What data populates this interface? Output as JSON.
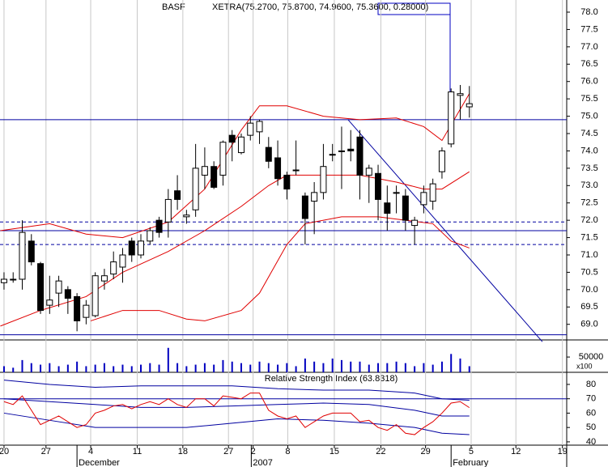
{
  "chart_data": {
    "type": "candlestick",
    "title": "BASF",
    "annotation": "XETRA(75.2700, 75.8700, 74.9600, 75.3600, 0.28000)",
    "xlim": [
      -0.44,
      61.67
    ],
    "xticks": [
      {
        "value": 0,
        "label": "20"
      },
      {
        "value": 4.6,
        "label": "27"
      },
      {
        "value": 9.5,
        "label": "4"
      },
      {
        "value": 14.6,
        "label": "11"
      },
      {
        "value": 19.6,
        "label": "18"
      },
      {
        "value": 24.6,
        "label": "27"
      },
      {
        "value": 27.3,
        "label": "2"
      },
      {
        "value": 31.1,
        "label": "8"
      },
      {
        "value": 36.2,
        "label": "15"
      },
      {
        "value": 41.3,
        "label": "22"
      },
      {
        "value": 46.2,
        "label": "29"
      },
      {
        "value": 51.2,
        "label": "5"
      },
      {
        "value": 56.1,
        "label": "12"
      },
      {
        "value": 61.2,
        "label": "19"
      }
    ],
    "month_labels": [
      {
        "value": 8,
        "label": "December"
      },
      {
        "value": 27.1,
        "label": "2007"
      },
      {
        "value": 49,
        "label": "February"
      }
    ],
    "ylim": [
      68.55,
      78.35
    ],
    "yticks": [
      {
        "value": 69,
        "label": "69.0"
      },
      69.5,
      {
        "value": 70,
        "label": "70.0"
      },
      70.5,
      {
        "value": 71,
        "label": "71.0"
      },
      71.5,
      {
        "value": 72,
        "label": "72.0"
      },
      72.5,
      {
        "value": 73,
        "label": "73.0"
      },
      73.5,
      {
        "value": 74,
        "label": "74.0"
      },
      74.5,
      {
        "value": 75,
        "label": "75.0"
      },
      75.5,
      {
        "value": 76,
        "label": "76.0"
      },
      76.5,
      {
        "value": 77,
        "label": "77.0"
      },
      77.5,
      {
        "value": 78,
        "label": "78.0"
      }
    ],
    "open": [
      70.2,
      70.3,
      70.3,
      71.4,
      70.75,
      69.55,
      69.9,
      70.0,
      69.8,
      69.2,
      69.25,
      70.25,
      70.45,
      70.65,
      71.4,
      71.0,
      71.4,
      72.0,
      71.95,
      72.85,
      72.1,
      72.3,
      73.3,
      73.55,
      73.3,
      74.45,
      73.95,
      74.45,
      74.55,
      74.1,
      73.8,
      73.3,
      73.45,
      72.7,
      72.55,
      72.8,
      73.9,
      74.0,
      74.05,
      74.4,
      73.3,
      73.35,
      72.5,
      72.8,
      72.7,
      71.85,
      72.45,
      72.55,
      73.4,
      74.2,
      75.6,
      75.27
    ],
    "high": [
      70.5,
      70.5,
      72.0,
      71.6,
      70.8,
      70.4,
      70.4,
      70.1,
      69.9,
      69.7,
      70.5,
      70.6,
      71.1,
      71.2,
      71.5,
      71.6,
      71.8,
      72.1,
      72.9,
      73.3,
      72.3,
      74.2,
      74.1,
      73.7,
      74.3,
      74.6,
      74.5,
      75.0,
      74.9,
      74.4,
      74.3,
      73.4,
      74.3,
      72.8,
      73.1,
      74.2,
      74.2,
      74.7,
      74.6,
      74.6,
      73.6,
      73.6,
      73.0,
      73.0,
      72.9,
      72.1,
      73.0,
      73.2,
      74.1,
      75.8,
      75.9,
      75.87
    ],
    "low": [
      70.0,
      70.2,
      70.0,
      70.7,
      69.3,
      69.3,
      69.5,
      69.3,
      68.8,
      69.0,
      69.2,
      70.0,
      70.3,
      70.2,
      70.8,
      70.9,
      71.3,
      71.5,
      71.5,
      72.3,
      71.9,
      72.1,
      72.9,
      72.9,
      73.0,
      73.7,
      73.9,
      74.3,
      74.2,
      73.5,
      73.0,
      72.6,
      73.3,
      71.3,
      71.6,
      72.6,
      73.7,
      72.9,
      73.7,
      72.6,
      72.5,
      72.0,
      71.7,
      72.2,
      71.7,
      71.3,
      72.2,
      72.3,
      73.2,
      74.1,
      74.9,
      74.96
    ],
    "close": [
      70.3,
      70.3,
      71.65,
      70.8,
      69.4,
      69.7,
      70.25,
      69.75,
      69.1,
      69.55,
      70.4,
      70.4,
      70.8,
      71.0,
      71.0,
      71.4,
      71.7,
      71.65,
      72.6,
      72.6,
      72.15,
      73.5,
      73.55,
      72.95,
      74.25,
      74.25,
      74.4,
      74.8,
      74.85,
      73.7,
      73.2,
      72.9,
      73.45,
      72.05,
      72.8,
      73.55,
      73.9,
      74.0,
      74.0,
      73.3,
      73.5,
      72.6,
      72.2,
      72.8,
      72.0,
      72.0,
      72.8,
      73.05,
      74.0,
      75.7,
      75.65,
      75.36
    ],
    "bands": [
      {
        "color": "#e00000",
        "x": [
          -0.4,
          5,
          9,
          13,
          18,
          22,
          26,
          28,
          31,
          35,
          39,
          43,
          46,
          48,
          51
        ],
        "values": [
          71.7,
          71.9,
          71.6,
          71.5,
          71.95,
          72.9,
          74.6,
          75.3,
          75.3,
          75.0,
          74.9,
          74.95,
          74.7,
          74.3,
          75.65
        ]
      },
      {
        "color": "#e00000",
        "x": [
          -0.4,
          4,
          9,
          13,
          18,
          22,
          26,
          29,
          31,
          35,
          39,
          43,
          46,
          48,
          51
        ],
        "values": [
          68.95,
          69.4,
          69.8,
          70.5,
          71.1,
          71.7,
          72.4,
          73.0,
          73.3,
          73.3,
          73.3,
          73.1,
          72.9,
          72.9,
          73.4
        ]
      },
      {
        "color": "#e00000",
        "x": [
          9.5,
          13,
          17,
          20,
          22,
          26,
          28,
          31,
          33,
          37,
          41,
          44,
          47,
          49,
          51
        ],
        "values": [
          69.1,
          69.4,
          69.4,
          69.15,
          69.1,
          69.4,
          69.9,
          71.3,
          71.9,
          72.1,
          72.1,
          72.0,
          71.9,
          71.4,
          71.2
        ]
      }
    ],
    "hlines": [
      {
        "value": 74.9,
        "style": "solid"
      },
      {
        "value": 71.95,
        "style": "dashed"
      },
      {
        "value": 71.7,
        "style": "solid"
      },
      {
        "value": 71.3,
        "style": "dashed"
      },
      {
        "value": 68.7,
        "style": "solid"
      }
    ],
    "trendline": {
      "x": [
        37.7,
        59
      ],
      "values": [
        74.9,
        68.5
      ]
    },
    "line_color": "#0000a0",
    "volume": {
      "values": [
        20000,
        15000,
        40000,
        30000,
        25000,
        30000,
        20000,
        25000,
        35000,
        20000,
        25000,
        30000,
        20000,
        25000,
        20000,
        25000,
        30000,
        25000,
        80000,
        30000,
        20000,
        25000,
        30000,
        25000,
        40000,
        35000,
        30000,
        25000,
        35000,
        30000,
        25000,
        30000,
        20000,
        45000,
        35000,
        30000,
        45000,
        40000,
        35000,
        35000,
        25000,
        30000,
        30000,
        35000,
        30000,
        20000,
        30000,
        25000,
        35000,
        60000,
        45000,
        20000
      ],
      "ylim": [
        0,
        90000
      ],
      "yticks": [
        50000
      ],
      "unit": "x100",
      "color": "#0000c0"
    },
    "rsi": {
      "title": "Relative Strength Index (63.8318)",
      "ylim": [
        37.7,
        87.3
      ],
      "yticks": [
        40,
        50,
        60,
        70,
        80
      ],
      "level": 70,
      "values": [
        68,
        66,
        72,
        62,
        52,
        55,
        58,
        54,
        50,
        52,
        60,
        62,
        65,
        66,
        63,
        66,
        68,
        66,
        70,
        66,
        64,
        70,
        70,
        65,
        72,
        71,
        70,
        74,
        74,
        62,
        58,
        56,
        58,
        50,
        54,
        58,
        60,
        60,
        60,
        54,
        55,
        50,
        48,
        52,
        46,
        45,
        50,
        54,
        60,
        67,
        68,
        63.8318
      ],
      "color": "#e00000",
      "bands": [
        {
          "color": "#0000a0",
          "x": [
            0,
            5,
            10,
            15,
            20,
            25,
            30,
            35,
            40,
            45,
            48,
            51
          ],
          "values": [
            83,
            80,
            78,
            79,
            79,
            79,
            77,
            76,
            76,
            74,
            70,
            69
          ]
        },
        {
          "color": "#0000a0",
          "x": [
            0,
            5,
            10,
            15,
            20,
            25,
            30,
            35,
            40,
            45,
            48,
            51
          ],
          "values": [
            70,
            68,
            66,
            64,
            64,
            65,
            66,
            67,
            66,
            62,
            58,
            58
          ]
        },
        {
          "color": "#0000a0",
          "x": [
            0,
            5,
            10,
            15,
            20,
            25,
            30,
            35,
            40,
            45,
            48,
            51
          ],
          "values": [
            60,
            55,
            50,
            50,
            50,
            53,
            56,
            55,
            53,
            50,
            46,
            45
          ]
        }
      ]
    }
  }
}
